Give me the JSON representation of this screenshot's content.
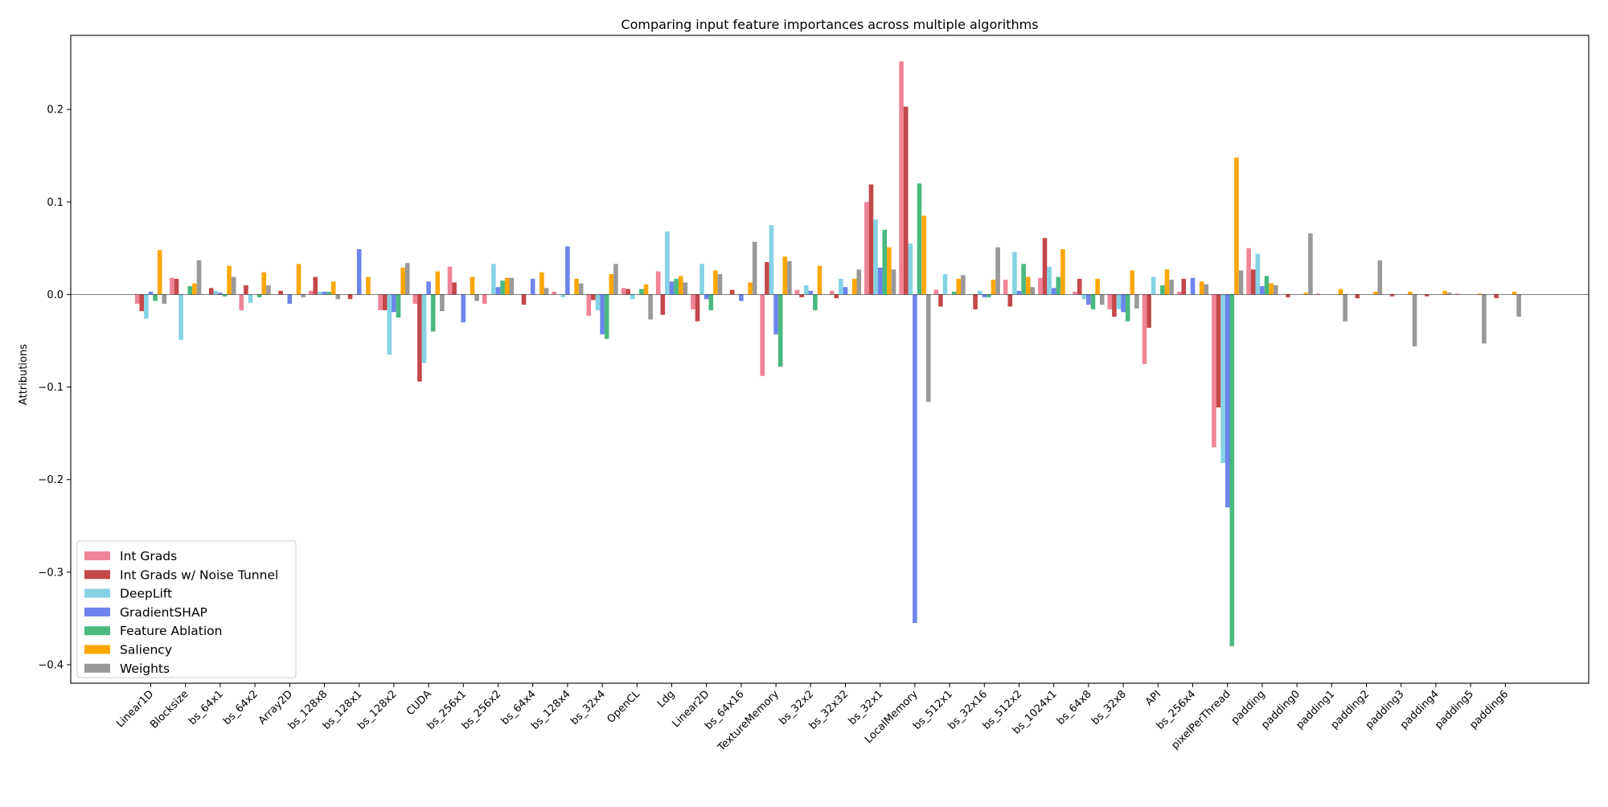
{
  "chart_data": {
    "type": "bar",
    "title": "Comparing input feature importances across multiple algorithms",
    "xlabel": "",
    "ylabel": "Attributions",
    "ylim": [
      -0.42,
      0.28
    ],
    "yticks": [
      -0.4,
      -0.3,
      -0.2,
      -0.1,
      0.0,
      0.1,
      0.2
    ],
    "ytick_labels": [
      "−0.4",
      "−0.3",
      "−0.2",
      "−0.1",
      "0.0",
      "0.1",
      "0.2"
    ],
    "grid": false,
    "legend_position": "lower-left",
    "categories": [
      "Linear1D",
      "Blocksize",
      "bs_64x1",
      "bs_64x2",
      "Array2D",
      "bs_128x8",
      "bs_128x1",
      "bs_128x2",
      "CUDA",
      "bs_256x1",
      "bs_256x2",
      "bs_64x4",
      "bs_128x4",
      "bs_32x4",
      "OpenCL",
      "Ldg",
      "Linear2D",
      "bs_64x16",
      "TextureMemory",
      "bs_32x2",
      "bs_32x32",
      "bs_32x1",
      "LocalMemory",
      "bs_512x1",
      "bs_32x16",
      "bs_512x2",
      "bs_1024x1",
      "bs_64x8",
      "bs_32x8",
      "API",
      "bs_256x4",
      "pixelPerThread",
      "padding",
      "padding0",
      "padding1",
      "padding2",
      "padding3",
      "padding4",
      "padding5",
      "padding6"
    ],
    "series": [
      {
        "name": "Int Grads",
        "color": "#f08497",
        "values": [
          -0.01,
          0.018,
          0.0,
          -0.017,
          0.0,
          0.004,
          0.0,
          -0.017,
          -0.01,
          0.03,
          -0.01,
          0.0,
          0.003,
          -0.023,
          0.007,
          0.025,
          -0.016,
          0.0,
          -0.088,
          0.005,
          0.004,
          0.1,
          0.252,
          0.005,
          0.0,
          0.016,
          0.018,
          0.003,
          -0.016,
          -0.075,
          0.003,
          -0.165,
          0.05,
          0.0,
          0.001,
          0.0,
          0.0,
          0.0,
          0.001,
          0.0
        ]
      },
      {
        "name": "Int Grads w/ Noise Tunnel",
        "color": "#c4474a",
        "values": [
          -0.018,
          0.017,
          0.007,
          0.01,
          0.004,
          0.019,
          -0.005,
          -0.017,
          -0.094,
          0.013,
          0.0,
          -0.011,
          0.0,
          -0.006,
          0.006,
          -0.022,
          -0.029,
          0.005,
          0.035,
          -0.003,
          -0.004,
          0.119,
          0.203,
          -0.013,
          -0.016,
          -0.013,
          0.061,
          0.017,
          -0.024,
          -0.036,
          0.017,
          -0.122,
          0.027,
          -0.003,
          0.0,
          -0.004,
          -0.002,
          -0.002,
          0.0,
          -0.004
        ]
      },
      {
        "name": "DeepLift",
        "color": "#86d2e5",
        "values": [
          -0.026,
          -0.049,
          0.004,
          -0.009,
          0.0,
          0.003,
          0.0,
          -0.065,
          -0.074,
          0.0,
          0.033,
          0.0,
          -0.003,
          -0.017,
          -0.005,
          0.068,
          0.033,
          0.0,
          0.075,
          0.01,
          0.017,
          0.081,
          0.055,
          0.022,
          0.004,
          0.046,
          0.03,
          -0.005,
          -0.016,
          0.019,
          0.0,
          -0.182,
          0.044,
          0.0,
          0.0,
          0.0,
          0.0,
          0.0,
          0.0,
          0.0
        ]
      },
      {
        "name": "GradientSHAP",
        "color": "#6d84ec",
        "values": [
          0.003,
          0.0,
          0.002,
          0.0,
          -0.01,
          0.003,
          0.049,
          -0.019,
          0.014,
          -0.03,
          0.008,
          0.017,
          0.052,
          -0.043,
          0.0,
          0.014,
          -0.005,
          -0.007,
          -0.043,
          0.004,
          0.008,
          0.029,
          -0.355,
          0.0,
          -0.003,
          0.004,
          0.007,
          -0.011,
          -0.019,
          0.0,
          0.018,
          -0.23,
          0.009,
          0.0,
          0.0,
          0.0,
          0.0,
          0.0,
          0.0,
          0.0
        ]
      },
      {
        "name": "Feature Ablation",
        "color": "#49b97f",
        "values": [
          -0.007,
          0.009,
          -0.002,
          -0.003,
          0.0,
          0.003,
          0.0,
          -0.025,
          -0.04,
          0.0,
          0.015,
          0.0,
          0.0,
          -0.048,
          0.006,
          0.017,
          -0.017,
          0.0,
          -0.078,
          -0.017,
          0.0,
          0.07,
          0.12,
          0.003,
          -0.003,
          0.033,
          0.019,
          -0.016,
          -0.029,
          0.01,
          0.0,
          -0.38,
          0.02,
          0.0,
          0.0,
          0.0,
          0.0,
          0.0,
          0.0,
          0.0
        ]
      },
      {
        "name": "Saliency",
        "color": "#ffa600",
        "values": [
          0.048,
          0.012,
          0.031,
          0.024,
          0.033,
          0.014,
          0.019,
          0.029,
          0.025,
          0.019,
          0.018,
          0.024,
          0.017,
          0.022,
          0.011,
          0.02,
          0.026,
          0.013,
          0.041,
          0.031,
          0.017,
          0.051,
          0.085,
          0.017,
          0.016,
          0.019,
          0.049,
          0.017,
          0.026,
          0.027,
          0.014,
          0.148,
          0.012,
          0.002,
          0.006,
          0.003,
          0.003,
          0.004,
          0.001,
          0.003
        ]
      },
      {
        "name": "Weights",
        "color": "#999999",
        "values": [
          -0.01,
          0.037,
          0.019,
          0.01,
          -0.003,
          -0.005,
          0.0,
          0.034,
          -0.018,
          -0.007,
          0.018,
          0.007,
          0.012,
          0.033,
          -0.027,
          0.013,
          0.022,
          0.057,
          0.036,
          0.0,
          0.027,
          0.027,
          -0.116,
          0.021,
          0.051,
          0.008,
          0.0,
          -0.011,
          -0.015,
          0.016,
          0.011,
          0.026,
          0.01,
          0.066,
          -0.029,
          0.037,
          -0.056,
          0.002,
          -0.053,
          -0.024
        ]
      }
    ]
  }
}
